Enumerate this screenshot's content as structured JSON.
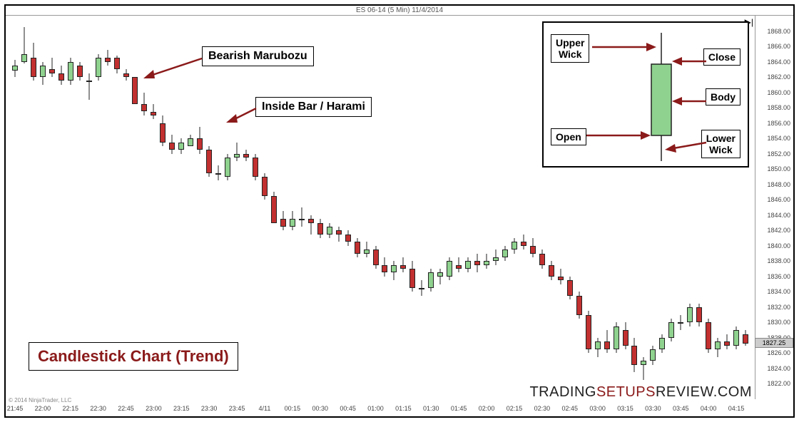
{
  "title": "ES 06-14 (5 Min)  11/4/2014",
  "copyright": "© 2014 NinjaTrader, LLC",
  "watermark_parts": [
    "TRADING",
    "SETUPS",
    "REVIEW",
    ".COM"
  ],
  "chart": {
    "type": "candlestick",
    "ylim": [
      1820,
      1870
    ],
    "ytick_step": 2,
    "yticks": [
      1822,
      1824,
      1826,
      1828,
      1830,
      1832,
      1834,
      1836,
      1838,
      1840,
      1842,
      1844,
      1846,
      1848,
      1850,
      1852,
      1854,
      1856,
      1858,
      1860,
      1862,
      1864,
      1866,
      1868
    ],
    "xlabels": [
      "21:45",
      "22:00",
      "22:15",
      "22:30",
      "22:45",
      "23:00",
      "23:15",
      "23:30",
      "23:45",
      "4/11",
      "00:15",
      "00:30",
      "00:45",
      "01:00",
      "01:15",
      "01:30",
      "01:45",
      "02:00",
      "02:15",
      "02:30",
      "02:45",
      "03:00",
      "03:15",
      "03:30",
      "03:45",
      "04:00",
      "04:15"
    ],
    "colors": {
      "up": "#8fd28f",
      "down": "#c23030",
      "wick": "#222222",
      "bg": "#ffffff",
      "axis": "#999999",
      "text": "#444444"
    },
    "last_price": 1827.25,
    "candles": [
      {
        "o": 1862.8,
        "h": 1864.2,
        "l": 1862.0,
        "c": 1863.5
      },
      {
        "o": 1864.0,
        "h": 1868.5,
        "l": 1863.8,
        "c": 1865.0
      },
      {
        "o": 1864.5,
        "h": 1866.5,
        "l": 1861.5,
        "c": 1862.0
      },
      {
        "o": 1862.0,
        "h": 1864.0,
        "l": 1861.0,
        "c": 1863.5
      },
      {
        "o": 1863.0,
        "h": 1864.5,
        "l": 1862.0,
        "c": 1862.5
      },
      {
        "o": 1862.5,
        "h": 1863.5,
        "l": 1861.0,
        "c": 1861.5
      },
      {
        "o": 1861.5,
        "h": 1864.5,
        "l": 1861.0,
        "c": 1864.0
      },
      {
        "o": 1863.5,
        "h": 1864.0,
        "l": 1861.5,
        "c": 1862.0
      },
      {
        "o": 1861.5,
        "h": 1862.5,
        "l": 1859.0,
        "c": 1861.5
      },
      {
        "o": 1862.0,
        "h": 1865.0,
        "l": 1861.5,
        "c": 1864.5
      },
      {
        "o": 1864.5,
        "h": 1865.5,
        "l": 1863.5,
        "c": 1864.0
      },
      {
        "o": 1864.5,
        "h": 1864.8,
        "l": 1862.5,
        "c": 1863.0
      },
      {
        "o": 1862.5,
        "h": 1863.0,
        "l": 1861.5,
        "c": 1862.0
      },
      {
        "o": 1862.0,
        "h": 1862.0,
        "l": 1858.5,
        "c": 1858.5
      },
      {
        "o": 1858.5,
        "h": 1860.0,
        "l": 1857.0,
        "c": 1857.5
      },
      {
        "o": 1857.5,
        "h": 1858.5,
        "l": 1856.5,
        "c": 1857.0
      },
      {
        "o": 1856.0,
        "h": 1857.0,
        "l": 1853.0,
        "c": 1853.5
      },
      {
        "o": 1853.5,
        "h": 1854.5,
        "l": 1852.0,
        "c": 1852.5
      },
      {
        "o": 1852.5,
        "h": 1854.0,
        "l": 1852.0,
        "c": 1853.5
      },
      {
        "o": 1853.0,
        "h": 1854.5,
        "l": 1853.0,
        "c": 1854.0
      },
      {
        "o": 1854.0,
        "h": 1855.5,
        "l": 1852.0,
        "c": 1852.5
      },
      {
        "o": 1852.5,
        "h": 1853.0,
        "l": 1849.0,
        "c": 1849.5
      },
      {
        "o": 1849.5,
        "h": 1850.5,
        "l": 1848.5,
        "c": 1849.5
      },
      {
        "o": 1849.0,
        "h": 1852.0,
        "l": 1848.5,
        "c": 1851.5
      },
      {
        "o": 1851.5,
        "h": 1853.5,
        "l": 1851.0,
        "c": 1852.0
      },
      {
        "o": 1852.0,
        "h": 1852.5,
        "l": 1851.0,
        "c": 1851.5
      },
      {
        "o": 1851.5,
        "h": 1852.0,
        "l": 1848.5,
        "c": 1849.0
      },
      {
        "o": 1849.0,
        "h": 1849.5,
        "l": 1846.0,
        "c": 1846.5
      },
      {
        "o": 1846.5,
        "h": 1847.0,
        "l": 1843.0,
        "c": 1843.0
      },
      {
        "o": 1843.5,
        "h": 1844.5,
        "l": 1842.0,
        "c": 1842.5
      },
      {
        "o": 1842.5,
        "h": 1844.5,
        "l": 1842.0,
        "c": 1843.5
      },
      {
        "o": 1843.5,
        "h": 1845.0,
        "l": 1842.5,
        "c": 1843.5
      },
      {
        "o": 1843.5,
        "h": 1844.0,
        "l": 1841.5,
        "c": 1843.0
      },
      {
        "o": 1843.0,
        "h": 1843.5,
        "l": 1841.0,
        "c": 1841.5
      },
      {
        "o": 1841.5,
        "h": 1843.0,
        "l": 1841.0,
        "c": 1842.5
      },
      {
        "o": 1842.0,
        "h": 1842.5,
        "l": 1840.5,
        "c": 1841.5
      },
      {
        "o": 1841.5,
        "h": 1842.0,
        "l": 1840.0,
        "c": 1840.5
      },
      {
        "o": 1840.5,
        "h": 1841.0,
        "l": 1838.5,
        "c": 1839.0
      },
      {
        "o": 1839.0,
        "h": 1840.5,
        "l": 1838.5,
        "c": 1839.5
      },
      {
        "o": 1839.5,
        "h": 1840.0,
        "l": 1837.0,
        "c": 1837.5
      },
      {
        "o": 1837.5,
        "h": 1838.5,
        "l": 1836.0,
        "c": 1836.5
      },
      {
        "o": 1836.5,
        "h": 1838.0,
        "l": 1835.5,
        "c": 1837.5
      },
      {
        "o": 1837.5,
        "h": 1838.5,
        "l": 1836.5,
        "c": 1837.0
      },
      {
        "o": 1837.0,
        "h": 1838.0,
        "l": 1834.0,
        "c": 1834.5
      },
      {
        "o": 1834.5,
        "h": 1835.5,
        "l": 1833.5,
        "c": 1834.5
      },
      {
        "o": 1834.5,
        "h": 1837.0,
        "l": 1834.0,
        "c": 1836.5
      },
      {
        "o": 1836.0,
        "h": 1837.0,
        "l": 1835.0,
        "c": 1836.5
      },
      {
        "o": 1836.0,
        "h": 1838.5,
        "l": 1835.5,
        "c": 1838.0
      },
      {
        "o": 1837.5,
        "h": 1838.5,
        "l": 1836.5,
        "c": 1837.0
      },
      {
        "o": 1837.0,
        "h": 1838.5,
        "l": 1836.5,
        "c": 1838.0
      },
      {
        "o": 1838.0,
        "h": 1839.0,
        "l": 1836.5,
        "c": 1837.5
      },
      {
        "o": 1837.5,
        "h": 1839.0,
        "l": 1837.0,
        "c": 1838.0
      },
      {
        "o": 1838.0,
        "h": 1839.5,
        "l": 1837.5,
        "c": 1838.5
      },
      {
        "o": 1838.5,
        "h": 1840.0,
        "l": 1838.0,
        "c": 1839.5
      },
      {
        "o": 1839.5,
        "h": 1841.0,
        "l": 1839.0,
        "c": 1840.5
      },
      {
        "o": 1840.5,
        "h": 1841.5,
        "l": 1839.5,
        "c": 1840.0
      },
      {
        "o": 1840.0,
        "h": 1841.0,
        "l": 1838.5,
        "c": 1839.0
      },
      {
        "o": 1839.0,
        "h": 1839.5,
        "l": 1837.0,
        "c": 1837.5
      },
      {
        "o": 1837.5,
        "h": 1838.0,
        "l": 1835.5,
        "c": 1836.0
      },
      {
        "o": 1836.0,
        "h": 1837.0,
        "l": 1835.0,
        "c": 1835.5
      },
      {
        "o": 1835.5,
        "h": 1836.0,
        "l": 1833.0,
        "c": 1833.5
      },
      {
        "o": 1833.5,
        "h": 1834.0,
        "l": 1830.5,
        "c": 1831.0
      },
      {
        "o": 1831.0,
        "h": 1831.5,
        "l": 1826.0,
        "c": 1826.5
      },
      {
        "o": 1826.5,
        "h": 1828.0,
        "l": 1825.5,
        "c": 1827.5
      },
      {
        "o": 1827.5,
        "h": 1829.0,
        "l": 1826.0,
        "c": 1826.5
      },
      {
        "o": 1826.5,
        "h": 1830.0,
        "l": 1826.0,
        "c": 1829.5
      },
      {
        "o": 1829.0,
        "h": 1830.0,
        "l": 1826.5,
        "c": 1827.0
      },
      {
        "o": 1827.0,
        "h": 1828.0,
        "l": 1823.5,
        "c": 1824.5
      },
      {
        "o": 1824.5,
        "h": 1825.5,
        "l": 1822.5,
        "c": 1825.0
      },
      {
        "o": 1825.0,
        "h": 1827.0,
        "l": 1824.5,
        "c": 1826.5
      },
      {
        "o": 1826.5,
        "h": 1828.5,
        "l": 1826.0,
        "c": 1828.0
      },
      {
        "o": 1828.0,
        "h": 1830.5,
        "l": 1827.5,
        "c": 1830.0
      },
      {
        "o": 1830.0,
        "h": 1831.0,
        "l": 1829.0,
        "c": 1830.0
      },
      {
        "o": 1830.0,
        "h": 1832.5,
        "l": 1829.5,
        "c": 1832.0
      },
      {
        "o": 1832.0,
        "h": 1832.5,
        "l": 1829.5,
        "c": 1830.0
      },
      {
        "o": 1830.0,
        "h": 1830.5,
        "l": 1826.0,
        "c": 1826.5
      },
      {
        "o": 1826.5,
        "h": 1828.0,
        "l": 1825.5,
        "c": 1827.5
      },
      {
        "o": 1827.5,
        "h": 1828.5,
        "l": 1826.5,
        "c": 1827.0
      },
      {
        "o": 1827.0,
        "h": 1829.5,
        "l": 1826.5,
        "c": 1829.0
      },
      {
        "o": 1828.5,
        "h": 1829.0,
        "l": 1827.0,
        "c": 1827.25
      }
    ]
  },
  "annotations": {
    "marubozu": "Bearish Marubozu",
    "harami": "Inside Bar / Harami",
    "main": "Candlestick Chart (Trend)"
  },
  "legend": {
    "upper_wick": "Upper\nWick",
    "close": "Close",
    "body": "Body",
    "open": "Open",
    "lower_wick": "Lower\nWick"
  }
}
